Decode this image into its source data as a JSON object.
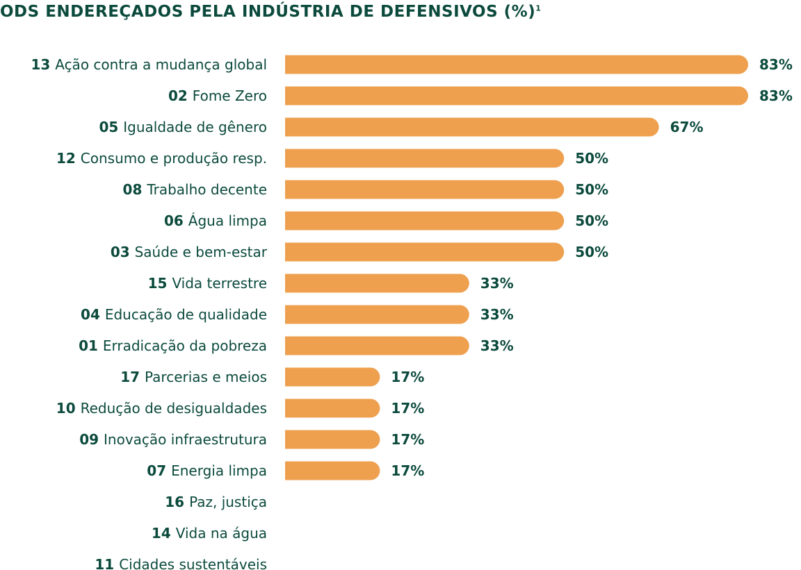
{
  "chart_data": {
    "type": "bar",
    "orientation": "horizontal",
    "title": "ODS ENDEREÇADOS PELA INDÚSTRIA DE DEFENSIVOS (%)",
    "title_superscript": "1",
    "xlim": [
      0,
      83
    ],
    "bar_color": "#eea04f",
    "text_color": "#0b4a3c",
    "categories": [
      {
        "num": "13",
        "name": "Ação contra a mudança global",
        "value": 83,
        "label": "83%"
      },
      {
        "num": "02",
        "name": "Fome Zero",
        "value": 83,
        "label": "83%"
      },
      {
        "num": "05",
        "name": "Igualdade de gênero",
        "value": 67,
        "label": "67%"
      },
      {
        "num": "12",
        "name": "Consumo e produção resp.",
        "value": 50,
        "label": "50%"
      },
      {
        "num": "08",
        "name": "Trabalho decente",
        "value": 50,
        "label": "50%"
      },
      {
        "num": "06",
        "name": "Água limpa",
        "value": 50,
        "label": "50%"
      },
      {
        "num": "03",
        "name": "Saúde e bem-estar",
        "value": 50,
        "label": "50%"
      },
      {
        "num": "15",
        "name": "Vida terrestre",
        "value": 33,
        "label": "33%"
      },
      {
        "num": "04",
        "name": "Educação de qualidade",
        "value": 33,
        "label": "33%"
      },
      {
        "num": "01",
        "name": "Erradicação da pobreza",
        "value": 33,
        "label": "33%"
      },
      {
        "num": "17",
        "name": "Parcerias e meios",
        "value": 17,
        "label": "17%"
      },
      {
        "num": "10",
        "name": "Redução de desigualdades",
        "value": 17,
        "label": "17%"
      },
      {
        "num": "09",
        "name": "Inovação infraestrutura",
        "value": 17,
        "label": "17%"
      },
      {
        "num": "07",
        "name": "Energia limpa",
        "value": 17,
        "label": "17%"
      },
      {
        "num": "16",
        "name": "Paz, justiça",
        "value": 0,
        "label": ""
      },
      {
        "num": "14",
        "name": "Vida na água",
        "value": 0,
        "label": ""
      },
      {
        "num": "11",
        "name": "Cidades sustentáveis",
        "value": 0,
        "label": ""
      }
    ]
  }
}
